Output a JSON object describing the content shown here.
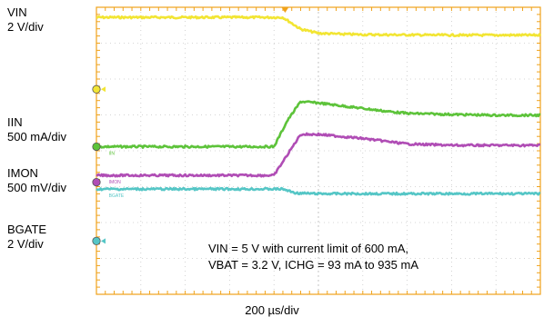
{
  "chart_data": {
    "type": "line",
    "grid": true,
    "x_scale": "200 µs/div",
    "x_divisions": 10,
    "annotation": [
      "VIN = 5 V with current limit of 600 mA,",
      "VBAT = 3.2 V, ICHG = 93 mA to 935 mA"
    ],
    "colors": {
      "grid_frame": "#f0a21a",
      "vin": "#f2e533",
      "iin": "#5dc33a",
      "imon": "#b04db5",
      "bgate": "#55c6c6"
    },
    "channels": [
      {
        "name": "VIN",
        "scale": "2 V/div",
        "marker": "",
        "color": "#f2e533",
        "x": [
          0,
          4.2,
          4.6,
          5.0,
          5.5,
          6.0,
          7.0,
          8.0,
          10
        ],
        "y": [
          10.13,
          10.13,
          9.7,
          9.55,
          9.52,
          9.5,
          9.49,
          9.48,
          9.48
        ]
      },
      {
        "name": "IIN",
        "scale": "500 mA/div",
        "marker": "IIN",
        "color": "#5dc33a",
        "x": [
          0,
          4.0,
          4.3,
          4.6,
          5.0,
          5.5,
          6.0,
          6.5,
          7.0,
          8.0,
          9.0,
          10
        ],
        "y": [
          5.4,
          5.4,
          6.35,
          7.05,
          7.0,
          6.9,
          6.8,
          6.7,
          6.62,
          6.58,
          6.55,
          6.55
        ]
      },
      {
        "name": "IMON",
        "scale": "500 mV/div",
        "marker": "IMON",
        "color": "#b04db5",
        "x": [
          0,
          4.0,
          4.3,
          4.6,
          5.0,
          6.0,
          7.0,
          8.0,
          9.0,
          10
        ],
        "y": [
          4.35,
          4.35,
          5.1,
          5.85,
          5.85,
          5.7,
          5.5,
          5.45,
          5.45,
          5.45
        ]
      },
      {
        "name": "BGATE",
        "scale": "2 V/div",
        "marker": "BGATE",
        "color": "#55c6c6",
        "x": [
          0,
          4.2,
          4.5,
          5.0,
          10
        ],
        "y": [
          3.85,
          3.85,
          3.7,
          3.68,
          3.68
        ]
      }
    ],
    "ground_markers": [
      {
        "channel": "VIN",
        "y": 7.5,
        "style": "arrow-circle",
        "color": "#f2e533"
      },
      {
        "channel": "IIN",
        "y": 5.4,
        "style": "circle",
        "color": "#5dc33a"
      },
      {
        "channel": "IMON",
        "y": 4.1,
        "style": "circle",
        "color": "#b04db5"
      },
      {
        "channel": "BGATE",
        "y": 1.95,
        "style": "arrow-circle",
        "color": "#55c6c6"
      }
    ],
    "trigger_marker": {
      "x": 4.25,
      "color": "#f0a21a"
    }
  }
}
